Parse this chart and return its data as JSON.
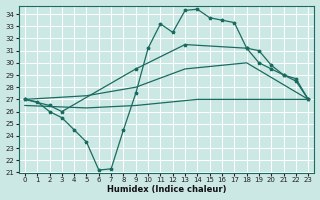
{
  "xlabel": "Humidex (Indice chaleur)",
  "background_color": "#cce8e5",
  "grid_color": "#b0d4d0",
  "line_color": "#1a6b60",
  "xlim": [
    -0.5,
    23.5
  ],
  "ylim": [
    21.0,
    34.7
  ],
  "yticks": [
    21,
    22,
    23,
    24,
    25,
    26,
    27,
    28,
    29,
    30,
    31,
    32,
    33,
    34
  ],
  "xticks": [
    0,
    1,
    2,
    3,
    4,
    5,
    6,
    7,
    8,
    9,
    10,
    11,
    12,
    13,
    14,
    15,
    16,
    17,
    18,
    19,
    20,
    21,
    22,
    23
  ],
  "line1_x": [
    0,
    1,
    2,
    3,
    4,
    5,
    6,
    7,
    8,
    9,
    10,
    11,
    12,
    13,
    14,
    15,
    16,
    17,
    18,
    19,
    20,
    21,
    22,
    23
  ],
  "line1_y": [
    27.0,
    26.8,
    26.0,
    25.5,
    24.5,
    23.5,
    21.2,
    21.3,
    24.5,
    27.5,
    31.2,
    33.2,
    32.5,
    34.3,
    34.4,
    33.7,
    33.5,
    33.3,
    31.2,
    31.0,
    29.8,
    29.0,
    28.7,
    27.0
  ],
  "line2_x": [
    0,
    2,
    3,
    9,
    13,
    18,
    19,
    20,
    21,
    22,
    23
  ],
  "line2_y": [
    27.0,
    26.5,
    26.0,
    29.5,
    31.5,
    31.2,
    30.0,
    29.5,
    29.0,
    28.5,
    27.0
  ],
  "line3_x": [
    0,
    5,
    9,
    13,
    18,
    23
  ],
  "line3_y": [
    27.0,
    27.3,
    28.0,
    29.5,
    30.0,
    27.0
  ],
  "line4_x": [
    0,
    5,
    9,
    14,
    23
  ],
  "line4_y": [
    26.5,
    26.3,
    26.5,
    27.0,
    27.0
  ]
}
